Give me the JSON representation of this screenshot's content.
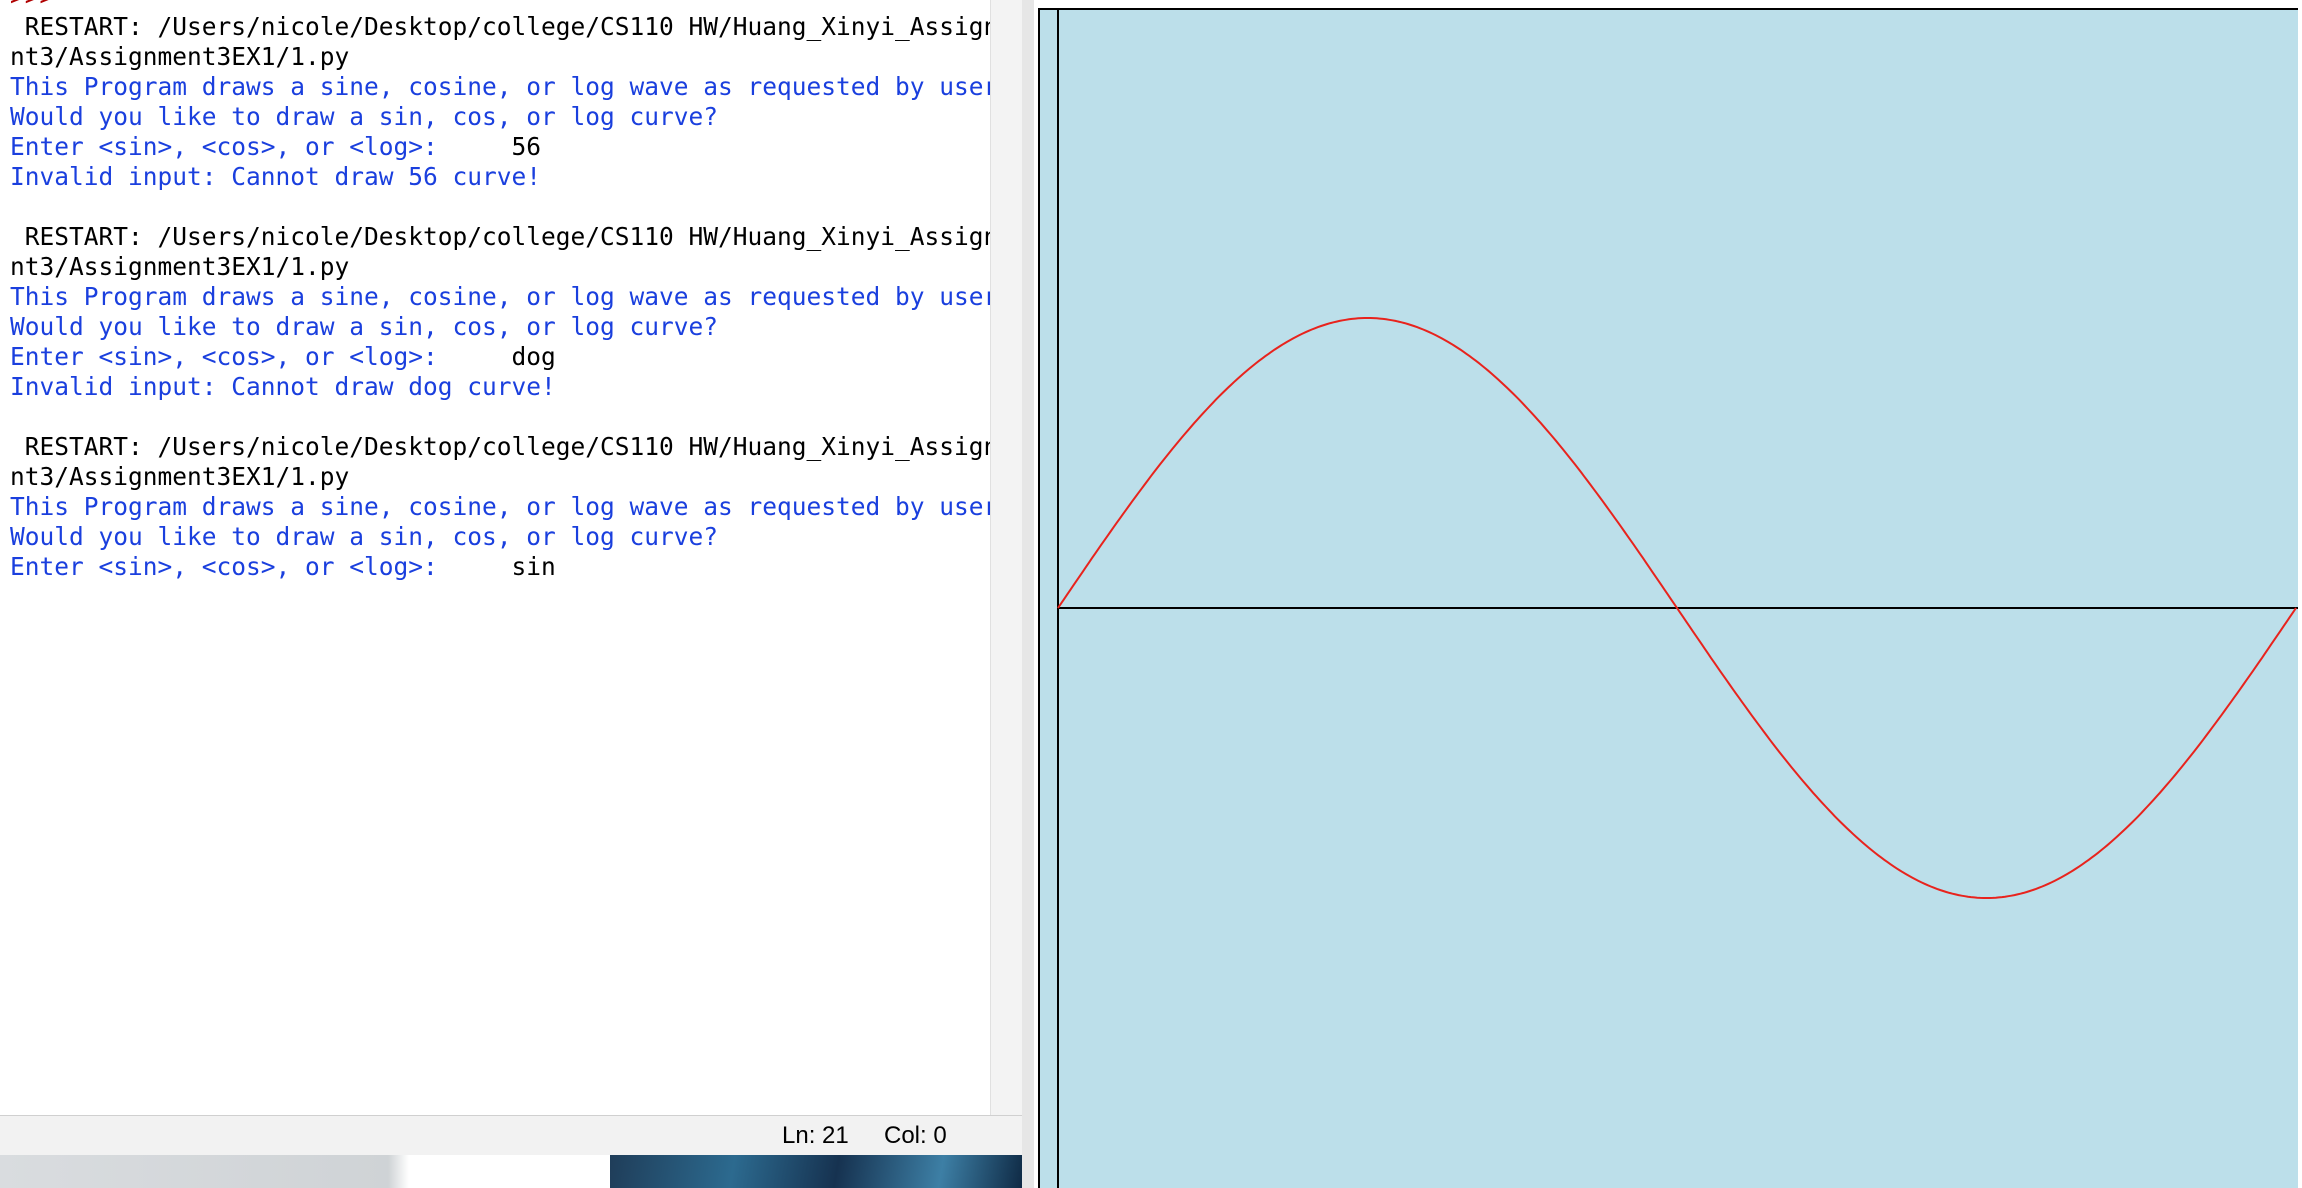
{
  "shell": {
    "lines": [
      {
        "kind": "prompt-line",
        "text": ">>> "
      },
      {
        "kind": "restart",
        "text": " RESTART: /Users/nicole/Desktop/college/CS110 HW/Huang_Xinyi_Assignme"
      },
      {
        "kind": "restart",
        "text": "nt3/Assignment3EX1/1.py"
      },
      {
        "kind": "stdout",
        "text": "This Program draws a sine, cosine, or log wave as requested by user"
      },
      {
        "kind": "stdout",
        "text": "Would you like to draw a sin, cos, or log curve?"
      },
      {
        "kind": "input",
        "prompt": "Enter <sin>, <cos>, or <log>:",
        "value": "     56"
      },
      {
        "kind": "stdout",
        "text": "Invalid input: Cannot draw 56 curve!"
      },
      {
        "kind": "blank",
        "text": ""
      },
      {
        "kind": "restart",
        "text": " RESTART: /Users/nicole/Desktop/college/CS110 HW/Huang_Xinyi_Assignme"
      },
      {
        "kind": "restart",
        "text": "nt3/Assignment3EX1/1.py"
      },
      {
        "kind": "stdout",
        "text": "This Program draws a sine, cosine, or log wave as requested by user"
      },
      {
        "kind": "stdout",
        "text": "Would you like to draw a sin, cos, or log curve?"
      },
      {
        "kind": "input",
        "prompt": "Enter <sin>, <cos>, or <log>:",
        "value": "     dog"
      },
      {
        "kind": "stdout",
        "text": "Invalid input: Cannot draw dog curve!"
      },
      {
        "kind": "blank",
        "text": ""
      },
      {
        "kind": "restart",
        "text": " RESTART: /Users/nicole/Desktop/college/CS110 HW/Huang_Xinyi_Assignme"
      },
      {
        "kind": "restart",
        "text": "nt3/Assignment3EX1/1.py"
      },
      {
        "kind": "stdout",
        "text": "This Program draws a sine, cosine, or log wave as requested by user"
      },
      {
        "kind": "stdout",
        "text": "Would you like to draw a sin, cos, or log curve?"
      },
      {
        "kind": "input",
        "prompt": "Enter <sin>, <cos>, or <log>:",
        "value": "     sin"
      }
    ]
  },
  "status_bar": {
    "ln": "Ln: 21",
    "col": "Col: 0"
  },
  "turtle": {
    "curve": "sin",
    "periods": 1,
    "colors": {
      "background": "#bcdfea",
      "curve": "#e8231d",
      "axes": "#000000"
    }
  },
  "colors": {
    "stdout": "#1a3fde",
    "prompt": "#b00000",
    "stdin": "#000000"
  }
}
